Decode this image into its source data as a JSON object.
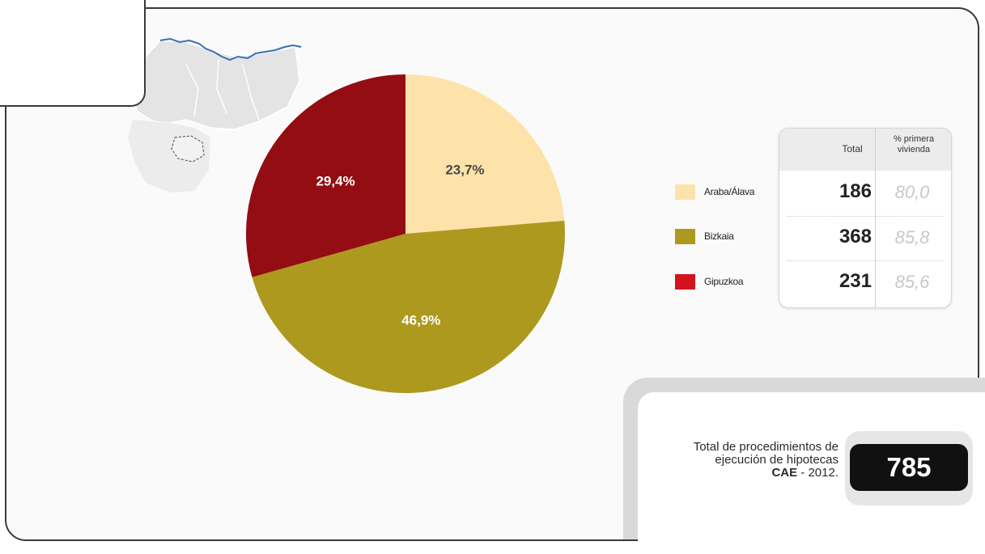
{
  "chart_data": {
    "type": "pie",
    "title": "",
    "slices": [
      {
        "label": "Araba/Álava",
        "value": 23.7,
        "display": "23,7%",
        "color": "#fde3a9",
        "total": "186",
        "pct_primera_vivienda": "80,0"
      },
      {
        "label": "Bizkaia",
        "value": 46.9,
        "display": "46,9%",
        "color": "#ad991e",
        "total": "368",
        "pct_primera_vivienda": "85,8"
      },
      {
        "label": "Gipuzkoa",
        "value": 29.4,
        "display": "29,4%",
        "color": "#930d13",
        "total": "231",
        "pct_primera_vivienda": "85,6"
      }
    ],
    "label_colors": {
      "light_slice": "#4a4a4a",
      "dark_slice": "#ffffff"
    },
    "legend_swatch_colors": [
      "#fde3a9",
      "#ad991e",
      "#d2131e"
    ]
  },
  "table": {
    "header_total": "Total",
    "header_pct_line1": "% primera",
    "header_pct_line2": "vivienda"
  },
  "summary": {
    "caption_line1": "Total de procedimientos de",
    "caption_line2": "ejecución de hipotecas",
    "caption_bold": "CAE",
    "caption_suffix": " - 2012.",
    "total_value": "785"
  },
  "map": {
    "coast_color": "#3c6fb4",
    "land_color": "#e4e4e4"
  }
}
